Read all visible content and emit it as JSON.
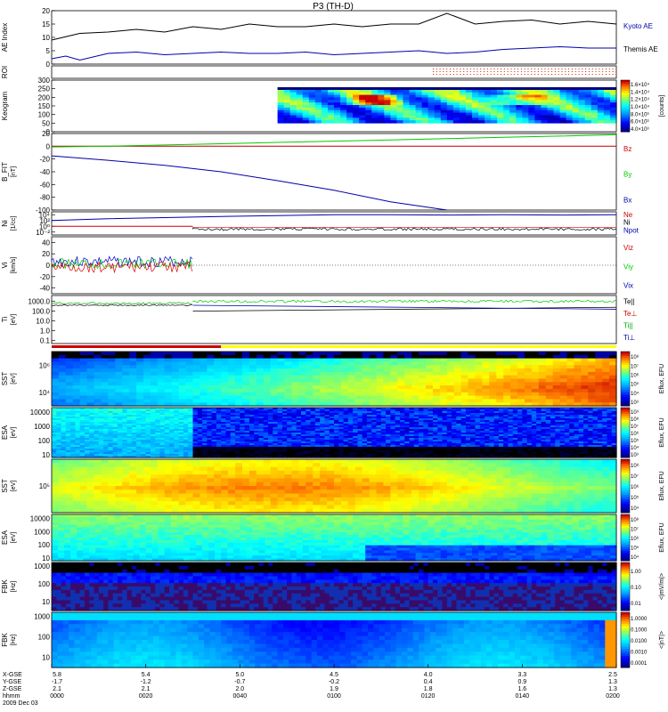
{
  "chart_data": {
    "type": "line",
    "title": "P3 (TH-D)",
    "date_label": "2009 Dec 03",
    "panels": [
      {
        "id": "ae",
        "ylabel": "AE Index",
        "ylim": [
          0,
          20
        ],
        "ticks": [
          "20",
          "15",
          "10",
          "5",
          "0"
        ],
        "tick_values": [
          20,
          15,
          10,
          5,
          0
        ],
        "series": [
          {
            "name": "Kyoto AE",
            "color": "#0000aa",
            "x": [
              0,
              10,
              20,
              30,
              40,
              50,
              60,
              70,
              80,
              90,
              100,
              110,
              120,
              130,
              140,
              150,
              160,
              170,
              180,
              190,
              200
            ],
            "values": [
              9,
              11.5,
              12,
              13,
              12,
              14,
              13,
              15,
              14,
              14,
              15,
              14,
              15,
              15,
              19,
              15,
              16,
              16.5,
              15,
              16,
              15
            ]
          },
          {
            "name": "Themis AE",
            "color": "#0000aa",
            "x": [
              0,
              5,
              10,
              20,
              30,
              40,
              50,
              60,
              70,
              80,
              90,
              100,
              110,
              120,
              130,
              140,
              150,
              160,
              170,
              180,
              190,
              200
            ],
            "values": [
              2,
              3,
              1.5,
              4,
              4.5,
              3.5,
              4,
              4.5,
              4,
              4,
              4.5,
              3.5,
              4,
              4.5,
              5,
              4,
              4.5,
              5.5,
              6,
              6.5,
              6,
              6
            ]
          }
        ],
        "legend": [
          "Kyoto AE",
          "Themis AE"
        ]
      },
      {
        "id": "roi",
        "ylabel": "ROI",
        "ticks": [],
        "tick_values": []
      },
      {
        "id": "keogram",
        "ylabel": "Keogram",
        "ylim": [
          0,
          300
        ],
        "ticks": [
          "300",
          "250",
          "200",
          "150",
          "100",
          "50",
          "0"
        ],
        "tick_values": [
          300,
          250,
          200,
          150,
          100,
          50,
          0
        ],
        "colorbar_label": "[counts]",
        "colorbar_ticks": [
          "1.6×10⁴",
          "1.4×10⁴",
          "1.2×10⁴",
          "1.0×10⁴",
          "8.0×10³",
          "6.0×10³",
          "4.0×10³"
        ]
      },
      {
        "id": "bfield",
        "ylabel": "B_FIT",
        "sublabel": "[nT]",
        "ylim": [
          -100,
          20
        ],
        "ticks": [
          "20",
          "0",
          "-20",
          "-40",
          "-60",
          "-80",
          "-100"
        ],
        "tick_values": [
          20,
          0,
          -20,
          -40,
          -60,
          -80,
          -100
        ],
        "series": [
          {
            "name": "Bz",
            "color": "#cc0000",
            "x": [
              0,
              200
            ],
            "values": [
              0,
              0
            ]
          },
          {
            "name": "By",
            "color": "#00cc00",
            "x": [
              0,
              20,
              40,
              60,
              80,
              100,
              120,
              140,
              160,
              180,
              200
            ],
            "values": [
              -1,
              0,
              2,
              4,
              6,
              8,
              10,
              12,
              14,
              16,
              18
            ]
          },
          {
            "name": "Bx",
            "color": "#0000aa",
            "x": [
              0,
              20,
              40,
              60,
              80,
              100,
              120,
              140
            ],
            "values": [
              -15,
              -22,
              -30,
              -40,
              -54,
              -69,
              -87,
              -100
            ]
          }
        ],
        "legend": [
          "Bz",
          "By",
          "Bx"
        ]
      },
      {
        "id": "density",
        "ylabel": "Ni",
        "sublabel": "[1/cc]",
        "ticks": [
          "10⁴",
          "10²",
          "10⁰",
          "10⁻²"
        ],
        "tick_values": [
          4,
          2,
          0,
          -2
        ],
        "series": [
          {
            "name": "Ne",
            "color": "#cc0000",
            "x": [
              0,
              50,
              50,
              200
            ],
            "values": [
              0,
              0,
              -0.3,
              -0.3
            ]
          },
          {
            "name": "Ni",
            "color": "#000000",
            "x": [
              0,
              50,
              50,
              200
            ],
            "values": [
              0,
              0,
              -1,
              -0.8
            ]
          },
          {
            "name": "Npot",
            "color": "#0000aa",
            "x": [
              0,
              20,
              40,
              60,
              80,
              100,
              120,
              140,
              160,
              180,
              200
            ],
            "values": [
              2,
              2.6,
              3,
              3.4,
              3.7,
              4,
              4,
              3.9,
              4,
              3.9,
              4
            ]
          }
        ],
        "legend": [
          "Ne",
          "Ni",
          "Npot"
        ]
      },
      {
        "id": "velocity",
        "ylabel": "Vi",
        "sublabel": "[km/s]",
        "ylim": [
          -50,
          50
        ],
        "ticks": [
          "40",
          "20",
          "0",
          "-20",
          "-40"
        ],
        "tick_values": [
          40,
          20,
          0,
          -20,
          -40
        ],
        "legend": [
          "Viz",
          "Viy",
          "Vix"
        ]
      },
      {
        "id": "temperature",
        "ylabel": "Ti",
        "sublabel": "[eV]",
        "ticks": [
          "1000.0",
          "100.0",
          "10.0",
          "1.0",
          "0.1"
        ],
        "tick_values": [
          3,
          2,
          1,
          0,
          -1
        ],
        "legend": [
          "Te||",
          "Te⊥",
          "Ti||",
          "Ti⊥"
        ]
      },
      {
        "id": "sst_e",
        "ylabel": "SST",
        "sublabel": "[eV]",
        "ticks": [
          "10⁶",
          "10⁴"
        ],
        "tick_values": [
          6,
          4
        ],
        "colorbar_label": "Eflux, EFU",
        "colorbar_ticks": [
          "10⁸",
          "10⁷",
          "10⁶",
          "10⁵",
          "10⁴",
          "10³"
        ]
      },
      {
        "id": "esa_e",
        "ylabel": "ESA",
        "sublabel": "[eV]",
        "ticks": [
          "10000",
          "1000",
          "100",
          "10"
        ],
        "tick_values": [
          4,
          3,
          2,
          1
        ],
        "colorbar_label": "Eflux, EFU",
        "colorbar_ticks": [
          "10⁹",
          "10⁸",
          "10⁷",
          "10⁶",
          "10⁵",
          "10⁴",
          "10³"
        ]
      },
      {
        "id": "sst_i",
        "ylabel": "SST",
        "sublabel": "[eV]",
        "ticks": [
          "10⁵"
        ],
        "tick_values": [
          5
        ],
        "colorbar_label": "Eflux, EFU",
        "colorbar_ticks": [
          "10⁸",
          "10⁷",
          "10⁶",
          "10⁵",
          "10⁴"
        ]
      },
      {
        "id": "esa_i",
        "ylabel": "ESA",
        "sublabel": "[eV]",
        "ticks": [
          "10000",
          "1000",
          "100",
          "10"
        ],
        "tick_values": [
          4,
          3,
          2,
          1
        ],
        "colorbar_label": "Eflux, EFU",
        "colorbar_ticks": [
          "10⁸",
          "10⁷",
          "10⁶",
          "10⁵",
          "10⁴"
        ]
      },
      {
        "id": "fbk_edc",
        "ylabel": "FBK",
        "sublabel": "[Hz]",
        "ticks": [
          "1000",
          "100",
          "10"
        ],
        "tick_values": [
          3,
          2,
          1
        ],
        "colorbar_label": "<|mV/m|>",
        "colorbar_ticks": [
          "1.00",
          "0.10",
          "0.01"
        ]
      },
      {
        "id": "fbk_scm",
        "ylabel": "FBK",
        "sublabel": "[Hz]",
        "ticks": [
          "1000",
          "100",
          "10"
        ],
        "tick_values": [
          3,
          2,
          1
        ],
        "colorbar_label": "<|nT|>",
        "colorbar_ticks": [
          "1.0000",
          "0.1000",
          "0.0100",
          "0.0010",
          "0.0001"
        ]
      }
    ],
    "x_axis": {
      "row_labels": [
        "X-GSE",
        "Y-GSE",
        "Z-GSE",
        "hhmm"
      ],
      "columns": [
        [
          "5.8",
          "-1.7",
          "2.1",
          "0000"
        ],
        [
          "5.4",
          "-1.2",
          "2.1",
          "0020"
        ],
        [
          "5.0",
          "-0.7",
          "2.0",
          "0040"
        ],
        [
          "4.5",
          "-0.2",
          "1.9",
          "0100"
        ],
        [
          "4.0",
          "0.4",
          "1.8",
          "0120"
        ],
        [
          "3.3",
          "0.9",
          "1.6",
          "0140"
        ],
        [
          "2.5",
          "1.3",
          "1.3",
          "0200"
        ]
      ]
    }
  }
}
